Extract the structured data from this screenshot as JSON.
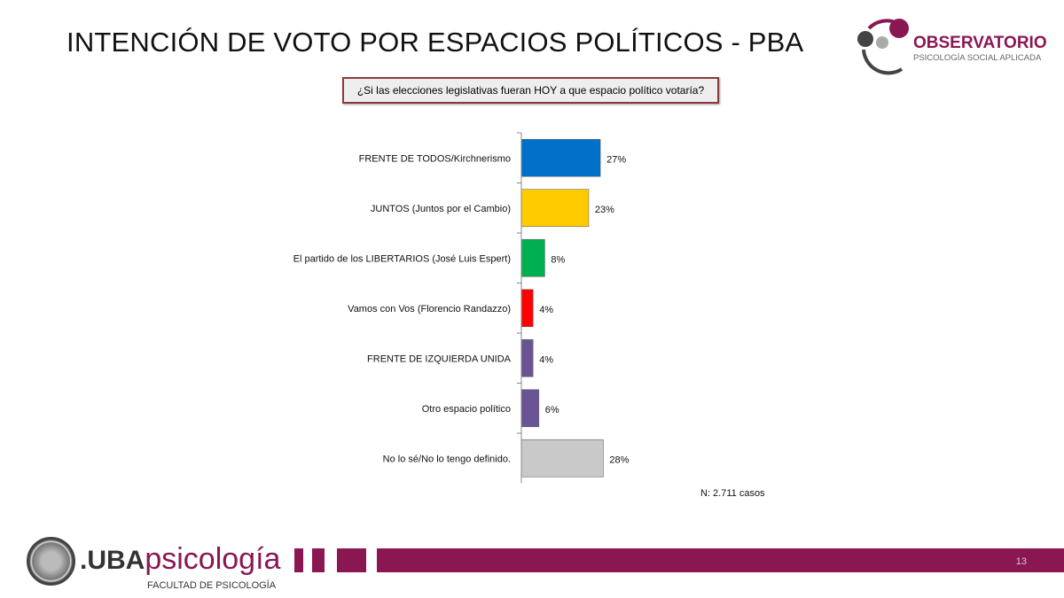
{
  "header": {
    "title": "INTENCIÓN DE VOTO POR ESPACIOS POLÍTICOS - PBA",
    "question": "¿Si las elecciones legislativas fueran HOY a que espacio político votaría?"
  },
  "logo": {
    "name": "OBSERVATORIO",
    "subtitle": "PSICOLOGÍA SOCIAL APLICADA"
  },
  "chart_data": {
    "type": "bar",
    "orientation": "horizontal",
    "title": "¿Si las elecciones legislativas fueran HOY a que espacio político votaría?",
    "categories": [
      "FRENTE DE TODOS/Kirchnerismo",
      "JUNTOS (Juntos por el Cambio)",
      "El partido de los LIBERTARIOS (José Luis Espert)",
      "Vamos con Vos (Florencio Randazzo)",
      "FRENTE DE IZQUIERDA UNIDA",
      "Otro espacio político",
      "No lo sé/No lo tengo definido."
    ],
    "values": [
      27,
      23,
      8,
      4,
      4,
      6,
      28
    ],
    "labels": [
      "27%",
      "23%",
      "8%",
      "4%",
      "4%",
      "6%",
      "28%"
    ],
    "colors": [
      "#0070c8",
      "#ffcc00",
      "#00b050",
      "#ff0000",
      "#6b5496",
      "#6b5496",
      "#c9c9c9"
    ],
    "unit": "%",
    "xlim": [
      0,
      30
    ],
    "grid": false
  },
  "note": "N: 2.711 casos",
  "footer": {
    "brand_prefix": ".UBA",
    "brand": "psicología",
    "faculty": "FACULTAD DE PSICOLOGÍA",
    "page": "13"
  }
}
